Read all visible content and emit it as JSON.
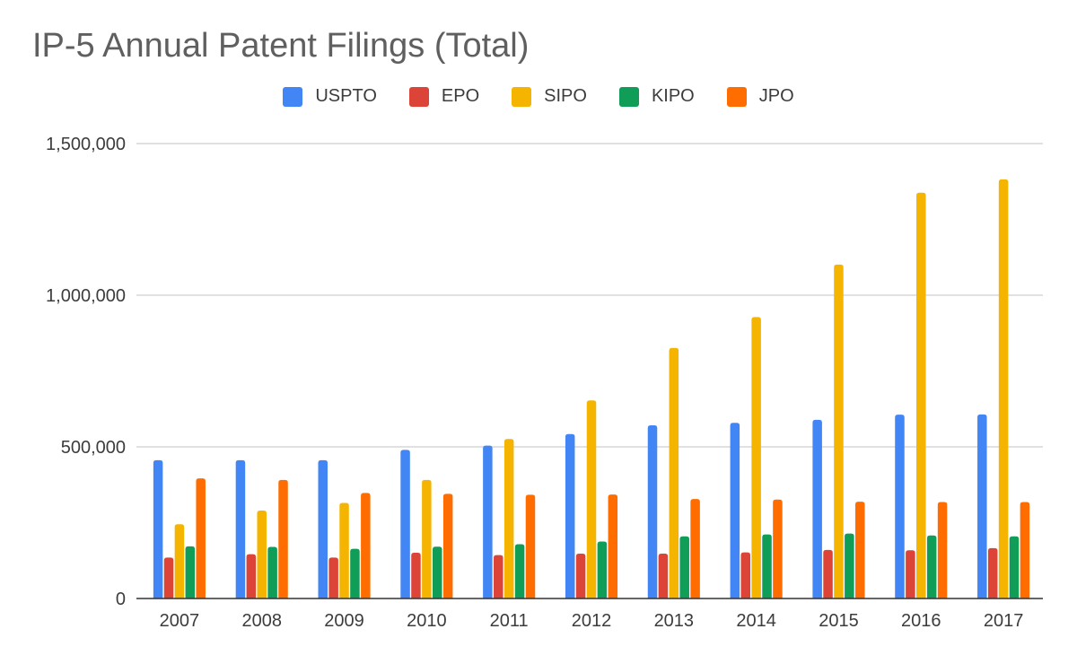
{
  "chart_data": {
    "type": "bar",
    "title": "IP-5 Annual Patent Filings (Total)",
    "xlabel": "",
    "ylabel": "",
    "ylim": [
      0,
      1500000
    ],
    "y_ticks": [
      0,
      500000,
      1000000,
      1500000
    ],
    "y_tick_labels": [
      "0",
      "500,000",
      "1,000,000",
      "1,500,000"
    ],
    "grid": true,
    "legend_position": "top-center",
    "categories": [
      "2007",
      "2008",
      "2009",
      "2010",
      "2011",
      "2012",
      "2013",
      "2014",
      "2015",
      "2016",
      "2017"
    ],
    "series": [
      {
        "name": "USPTO",
        "color": "#4285F4",
        "values": [
          456000,
          456000,
          456000,
          490000,
          504000,
          542000,
          571000,
          579000,
          589000,
          606000,
          607000
        ]
      },
      {
        "name": "EPO",
        "color": "#DB4437",
        "values": [
          135000,
          146000,
          135000,
          151000,
          143000,
          148000,
          148000,
          152000,
          160000,
          159000,
          166000
        ]
      },
      {
        "name": "SIPO",
        "color": "#F4B400",
        "values": [
          245000,
          290000,
          315000,
          391000,
          526000,
          653000,
          826000,
          928000,
          1101000,
          1338000,
          1382000
        ]
      },
      {
        "name": "KIPO",
        "color": "#0F9D58",
        "values": [
          172000,
          170000,
          164000,
          171000,
          179000,
          188000,
          205000,
          211000,
          214000,
          208000,
          205000
        ]
      },
      {
        "name": "JPO",
        "color": "#FF6D00",
        "values": [
          396000,
          391000,
          348000,
          345000,
          342000,
          343000,
          328000,
          326000,
          319000,
          318000,
          318000
        ]
      }
    ]
  }
}
